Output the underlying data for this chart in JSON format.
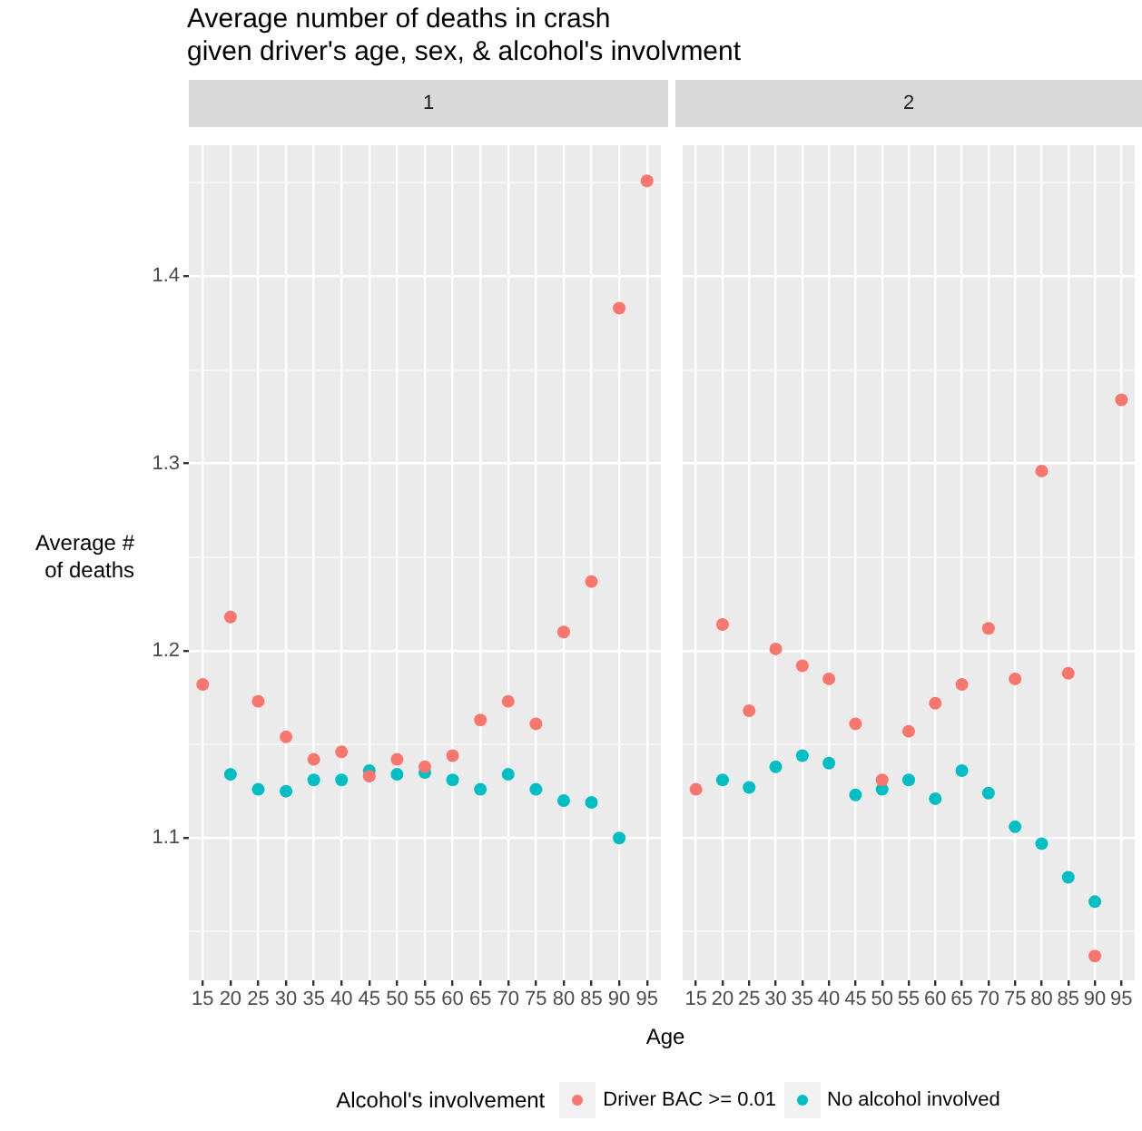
{
  "chart_data": [
    {
      "type": "scatter",
      "title": "Average number of deaths in crash\ngiven driver's age, sex, & alcohol's involvment",
      "subtitle": "1",
      "xlabel": "Age",
      "ylabel": "Average #\nof deaths",
      "legend_title": "Alcohol's involvement",
      "legend": "bottom",
      "marker": "circle",
      "grid": true,
      "categories": [
        "15",
        "20",
        "25",
        "30",
        "35",
        "40",
        "45",
        "50",
        "55",
        "60",
        "65",
        "70",
        "75",
        "80",
        "85",
        "90",
        "95"
      ],
      "ylim": [
        1.024,
        1.47
      ],
      "yticks": [
        {
          "value": 1.05,
          "label": null
        },
        1.1,
        {
          "value": 1.15,
          "label": null
        },
        1.2,
        {
          "value": 1.25,
          "label": null
        },
        1.3,
        {
          "value": 1.35,
          "label": null
        },
        1.4,
        {
          "value": 1.45,
          "label": null
        }
      ],
      "series": [
        {
          "name": "Driver BAC >= 0.01",
          "color": "#f8766d",
          "values": [
            1.182,
            1.218,
            1.173,
            1.154,
            1.142,
            1.146,
            1.133,
            1.142,
            1.138,
            1.144,
            1.163,
            1.173,
            1.161,
            1.21,
            1.237,
            1.383,
            1.451
          ]
        },
        {
          "name": "No alcohol involved",
          "color": "#00bfc4",
          "values": [
            null,
            1.134,
            1.126,
            1.125,
            1.131,
            1.131,
            1.136,
            1.134,
            1.135,
            1.131,
            1.126,
            1.134,
            1.126,
            1.12,
            1.119,
            1.1,
            null
          ]
        }
      ]
    },
    {
      "type": "scatter",
      "subtitle": "2",
      "tick_labels": "x",
      "marker": "circle",
      "grid": true,
      "categories": [
        "15",
        "20",
        "25",
        "30",
        "35",
        "40",
        "45",
        "50",
        "55",
        "60",
        "65",
        "70",
        "75",
        "80",
        "85",
        "90",
        "95"
      ],
      "ylim": [
        1.024,
        1.47
      ],
      "yticks": [
        {
          "value": 1.05,
          "label": null
        },
        1.1,
        {
          "value": 1.15,
          "label": null
        },
        1.2,
        {
          "value": 1.25,
          "label": null
        },
        1.3,
        {
          "value": 1.35,
          "label": null
        },
        1.4,
        {
          "value": 1.45,
          "label": null
        }
      ],
      "series": [
        {
          "color": "#f8766d",
          "values": [
            1.126,
            1.214,
            1.168,
            1.201,
            1.192,
            1.185,
            1.161,
            1.131,
            1.157,
            1.172,
            1.182,
            1.212,
            1.185,
            1.296,
            1.188,
            1.037,
            1.334
          ]
        },
        {
          "color": "#00bfc4",
          "values": [
            null,
            1.131,
            1.127,
            1.138,
            1.144,
            1.14,
            1.123,
            1.126,
            1.131,
            1.121,
            1.136,
            1.124,
            1.106,
            1.097,
            1.079,
            1.066,
            null
          ]
        }
      ]
    }
  ]
}
